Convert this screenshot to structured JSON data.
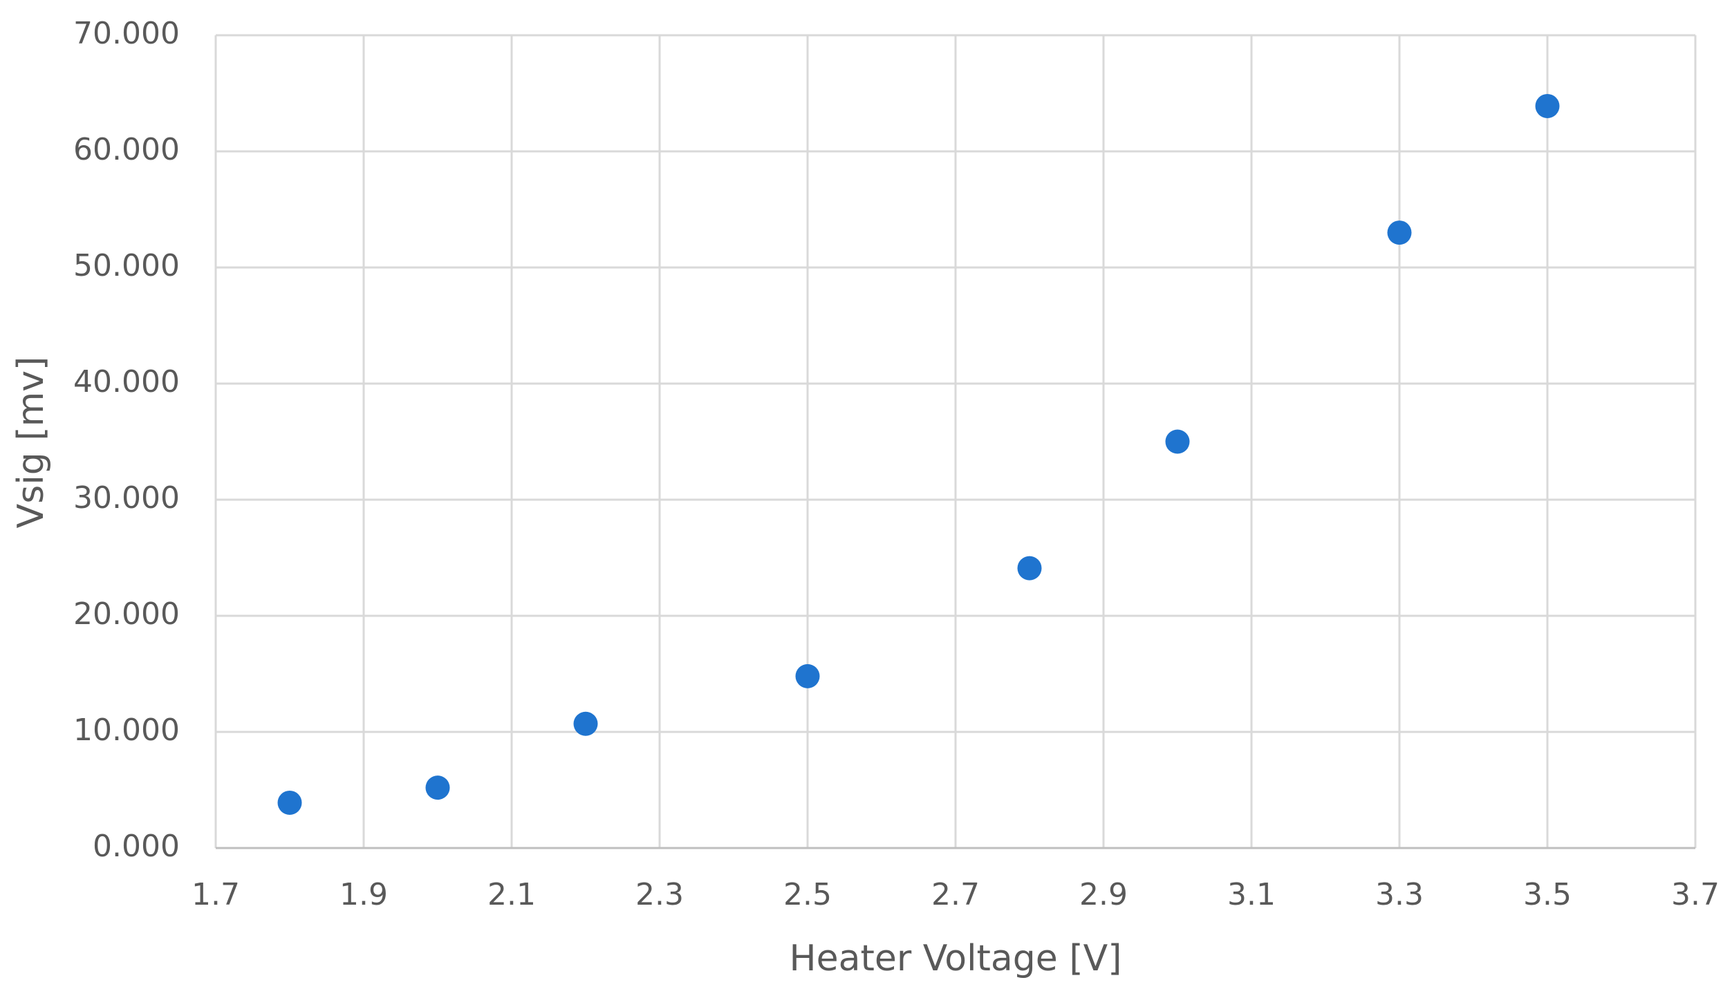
{
  "chart_data": {
    "type": "scatter",
    "x_label": "Heater Voltage [V]",
    "y_label": "Vsig [mv]",
    "x": [
      1.8,
      2.0,
      2.2,
      2.5,
      2.8,
      3.0,
      3.3,
      3.5
    ],
    "values": [
      3.9,
      5.2,
      10.7,
      14.8,
      24.1,
      35.0,
      53.0,
      63.9
    ],
    "color": "#1f74cf",
    "xlim": [
      1.7,
      3.7
    ],
    "xticks": [
      1.7,
      1.9,
      2.1,
      2.3,
      2.5,
      2.7,
      2.9,
      3.1,
      3.3,
      3.5,
      3.7
    ],
    "ylim": [
      0,
      70
    ],
    "yticks": [
      {
        "value": 0,
        "label": "0.000"
      },
      {
        "value": 10,
        "label": "10.000"
      },
      {
        "value": 20,
        "label": "20.000"
      },
      {
        "value": 30,
        "label": "30.000"
      },
      {
        "value": 40,
        "label": "40.000"
      },
      {
        "value": 50,
        "label": "50.000"
      },
      {
        "value": 60,
        "label": "60.000"
      },
      {
        "value": 70,
        "label": "70.000"
      }
    ],
    "grid": true
  }
}
